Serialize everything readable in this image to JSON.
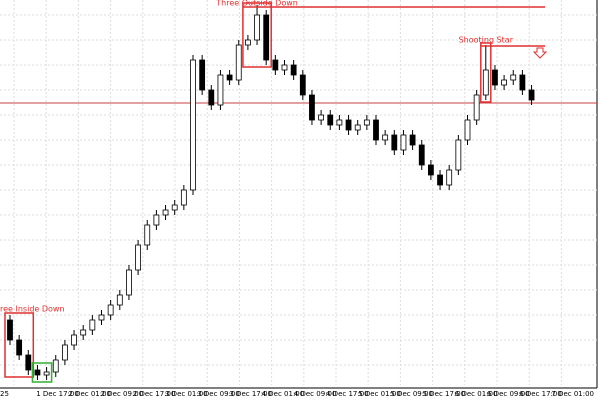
{
  "chart_data": {
    "type": "candlestick",
    "ylim": [
      0,
      385
    ],
    "open": [
      65,
      45,
      30,
      15,
      10,
      13,
      25,
      40,
      50,
      55,
      65,
      70,
      80,
      90,
      115,
      140,
      160,
      170,
      175,
      180,
      195,
      325,
      295,
      280,
      310,
      305,
      340,
      345,
      370,
      325,
      315,
      320,
      310,
      290,
      265,
      270,
      260,
      265,
      255,
      260,
      265,
      245,
      250,
      235,
      250,
      240,
      220,
      210,
      200,
      215,
      245,
      265,
      290,
      315,
      300,
      305,
      310,
      295
    ],
    "high": [
      70,
      50,
      35,
      20,
      18,
      30,
      45,
      55,
      60,
      70,
      75,
      85,
      95,
      120,
      145,
      165,
      175,
      180,
      185,
      200,
      330,
      330,
      300,
      315,
      315,
      345,
      350,
      380,
      375,
      330,
      325,
      325,
      315,
      295,
      275,
      275,
      270,
      270,
      265,
      270,
      270,
      255,
      255,
      255,
      255,
      245,
      225,
      215,
      220,
      250,
      270,
      295,
      340,
      320,
      310,
      315,
      315,
      300
    ],
    "low": [
      40,
      25,
      10,
      5,
      5,
      8,
      20,
      35,
      45,
      50,
      60,
      65,
      75,
      85,
      110,
      135,
      155,
      165,
      170,
      175,
      190,
      290,
      275,
      275,
      300,
      300,
      335,
      340,
      320,
      310,
      310,
      305,
      285,
      260,
      260,
      255,
      255,
      250,
      250,
      255,
      240,
      240,
      230,
      230,
      235,
      215,
      205,
      195,
      195,
      210,
      240,
      260,
      285,
      295,
      295,
      300,
      290,
      280
    ],
    "close": [
      45,
      30,
      15,
      10,
      13,
      25,
      40,
      50,
      55,
      65,
      70,
      80,
      90,
      115,
      140,
      160,
      170,
      175,
      180,
      195,
      325,
      295,
      280,
      310,
      305,
      340,
      345,
      370,
      325,
      315,
      320,
      310,
      290,
      265,
      270,
      260,
      265,
      255,
      260,
      265,
      245,
      250,
      235,
      250,
      240,
      220,
      210,
      200,
      215,
      245,
      265,
      290,
      315,
      300,
      305,
      310,
      295,
      285
    ],
    "up_color": "#ffffff",
    "down_color": "#000000",
    "outline_color": "#000000",
    "xticks": [
      "25",
      "1 Dec 17:00",
      "2 Dec 01:00",
      "2 Dec 09:00",
      "2 Dec 17:00",
      "3 Dec 01:00",
      "3 Dec 09:00",
      "3 Dec 17:00",
      "4 Dec 01:00",
      "4 Dec 09:00",
      "4 Dec 17:00",
      "5 Dec 01:00",
      "5 Dec 09:00",
      "5 Dec 17:00",
      "6 Dec 01:00",
      "6 Dec 09:00",
      "6 Dec 17:00",
      "7 Dec 01:00"
    ],
    "price_line": {
      "value": 282,
      "color": "#c84040"
    },
    "patterns": [
      {
        "label": "ree Inside Down",
        "start": 0,
        "end": 2,
        "color": "#e03030"
      },
      {
        "start": 3,
        "end": 4,
        "color": "#30b030"
      },
      {
        "label": "Three Outside Down",
        "start": 26,
        "end": 28,
        "color": "#e03030",
        "level": 378
      },
      {
        "label": "Shooting Star",
        "start": 52,
        "end": 52,
        "color": "#e03030",
        "level": 339
      }
    ],
    "grid": true
  }
}
